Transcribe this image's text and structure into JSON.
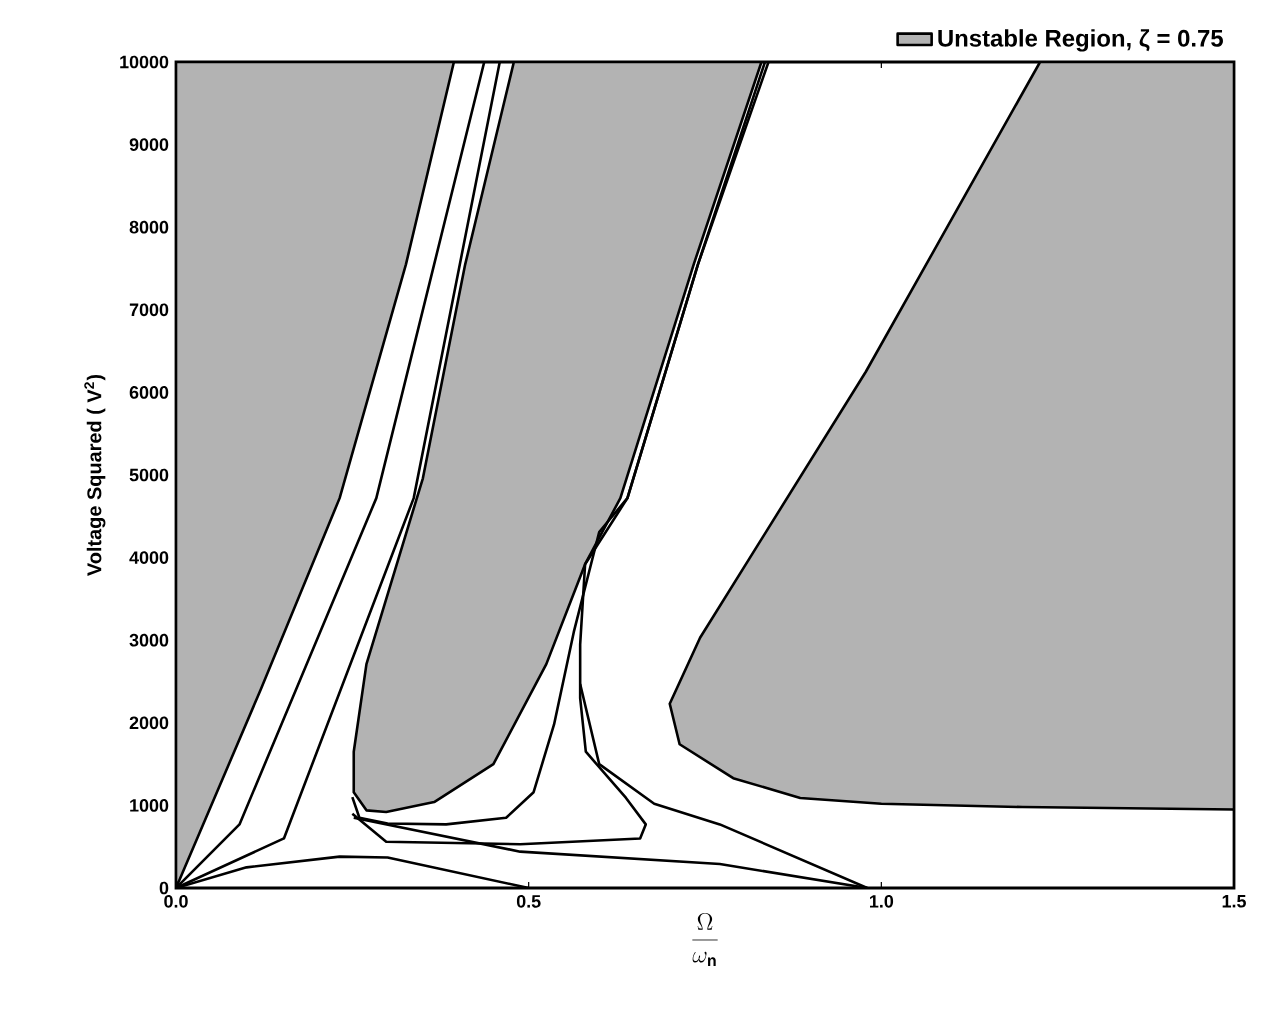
{
  "chart_data": {
    "type": "line",
    "xlabel": "\\frac{\\Omega}{\\omega_{\\mathbf{n}}}",
    "ylabel": "Voltage Squared ( V$^{2}$)",
    "xlim": [
      0,
      1.5
    ],
    "ylim": [
      0,
      10000
    ],
    "xticks": [
      {
        "value": 0,
        "label": "0.0"
      },
      0.5,
      {
        "value": 1,
        "label": "1.0"
      },
      1.5
    ],
    "yticks": [
      0,
      1000,
      2000,
      3000,
      4000,
      5000,
      6000,
      7000,
      8000,
      9000,
      10000
    ],
    "legend": "top right",
    "grid": false,
    "series": [
      {
        "type": "area",
        "name": "Unstable Region, ζ = 0.75",
        "color": "#b3b3b3",
        "x": [
          0,
          0.12,
          0.232,
          0.326,
          0.394,
          0
        ],
        "values": [
          0,
          2400,
          4720,
          7550,
          10000,
          10000
        ]
      },
      {
        "type": "area",
        "color": "#b3b3b3",
        "x": [
          0.479,
          0.41,
          0.35,
          0.27,
          0.252,
          0.252,
          0.27,
          0.298,
          0.366,
          0.45,
          0.525,
          0.58,
          0.63,
          0.734,
          0.83
        ],
        "values": [
          10000,
          7550,
          4960,
          2710,
          1650,
          1160,
          940,
          920,
          1040,
          1500,
          2710,
          3920,
          4720,
          7550,
          10000
        ]
      },
      {
        "type": "area",
        "color": "#b3b3b3",
        "x": [
          1.225,
          0.978,
          0.743,
          0.7,
          0.714,
          0.79,
          0.885,
          1.0,
          1.2,
          1.5,
          1.5
        ],
        "values": [
          10000,
          6250,
          3030,
          2230,
          1740,
          1330,
          1090,
          1020,
          980,
          950,
          10000
        ]
      },
      {
        "color": "#000000",
        "x": [
          0,
          0.09,
          0.284,
          0.366,
          0.437
        ],
        "values": [
          0,
          770,
          4720,
          7550,
          10000
        ]
      },
      {
        "color": "#000000",
        "x": [
          0,
          0.153,
          0.337,
          0.459
        ],
        "values": [
          0,
          600,
          4720,
          10000
        ]
      },
      {
        "color": "#000000",
        "x": [
          0,
          0.1,
          0.232,
          0.3,
          0.5
        ],
        "values": [
          0,
          250,
          380,
          370,
          0
        ]
      },
      {
        "color": "#000000",
        "x": [
          0.25,
          0.26,
          0.3,
          0.383,
          0.468,
          0.507,
          0.536,
          0.564,
          0.6,
          0.64,
          0.74,
          0.835
        ],
        "values": [
          1100,
          850,
          780,
          770,
          850,
          1160,
          1980,
          3100,
          4310,
          4720,
          7550,
          10000
        ]
      },
      {
        "color": "#000000",
        "x": [
          0.25,
          0.298,
          0.488,
          0.658,
          0.666,
          0.638,
          0.581,
          0.573,
          0.573,
          0.58,
          0.64,
          0.74,
          0.84
        ],
        "values": [
          900,
          560,
          530,
          600,
          770,
          1090,
          1650,
          2300,
          2950,
          3920,
          4720,
          7550,
          10000
        ]
      },
      {
        "color": "#000000",
        "x": [
          0.573,
          0.6,
          0.678,
          0.771,
          0.98
        ],
        "values": [
          2470,
          1500,
          1020,
          770,
          0
        ]
      },
      {
        "color": "#000000",
        "x": [
          0.252,
          0.488,
          0.771,
          0.98
        ],
        "values": [
          850,
          440,
          290,
          0
        ]
      }
    ]
  }
}
